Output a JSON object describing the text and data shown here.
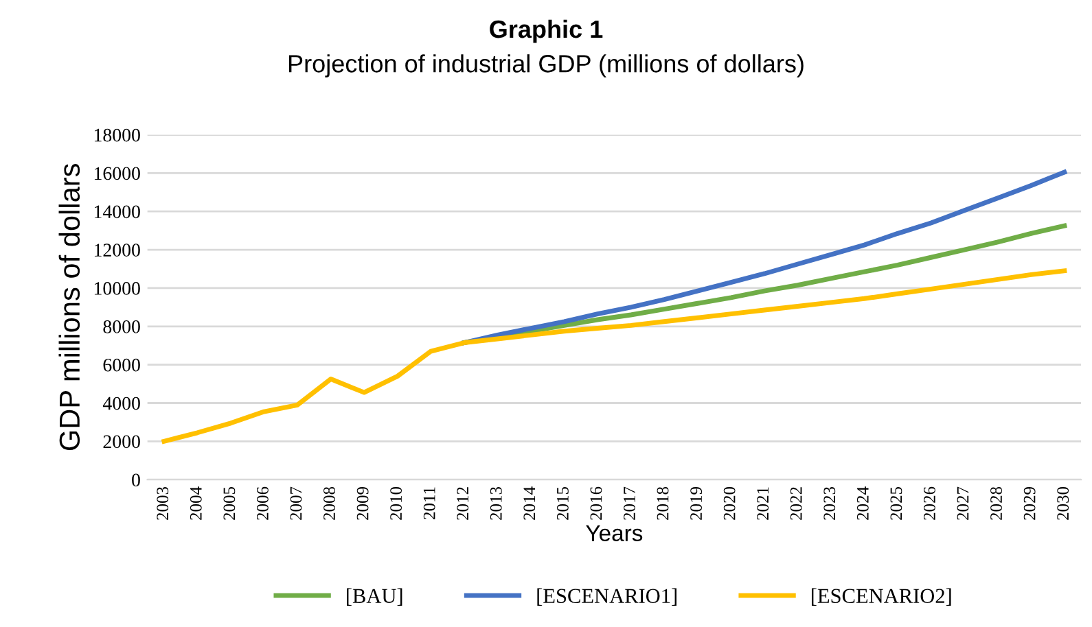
{
  "chart_data": {
    "type": "line",
    "title": "Graphic 1",
    "subtitle": "Projection of industrial GDP (millions of dollars)",
    "xlabel": "Years",
    "ylabel": "GDP millions of dollars",
    "categories": [
      "2003",
      "2004",
      "2005",
      "2006",
      "2007",
      "2008",
      "2009",
      "2010",
      "2011",
      "2012",
      "2013",
      "2014",
      "2015",
      "2016",
      "2017",
      "2018",
      "2019",
      "2020",
      "2021",
      "2022",
      "2023",
      "2024",
      "2025",
      "2026",
      "2027",
      "2028",
      "2029",
      "2030"
    ],
    "series": [
      {
        "name": "[BAU]",
        "color": "#70ad47",
        "values": [
          null,
          null,
          null,
          null,
          null,
          null,
          null,
          null,
          null,
          7150,
          7450,
          7750,
          8050,
          8350,
          8600,
          8900,
          9200,
          9500,
          9850,
          10150,
          10500,
          10850,
          11200,
          11600,
          12000,
          12400,
          12850,
          13250
        ]
      },
      {
        "name": "[ESCENARIO1]",
        "color": "#4472c4",
        "values": [
          null,
          null,
          null,
          null,
          null,
          null,
          null,
          null,
          null,
          7150,
          7550,
          7900,
          8250,
          8650,
          9000,
          9400,
          9850,
          10300,
          10750,
          11250,
          11750,
          12250,
          12850,
          13400,
          14050,
          14700,
          15350,
          16050
        ]
      },
      {
        "name": "[ESCENARIO2]",
        "color": "#ffc000",
        "values": [
          2000,
          2450,
          2950,
          3550,
          3900,
          5250,
          4550,
          5400,
          6700,
          7150,
          7350,
          7550,
          7750,
          7900,
          8050,
          8250,
          8450,
          8650,
          8850,
          9050,
          9250,
          9450,
          9700,
          9950,
          10200,
          10450,
          10700,
          10900
        ]
      }
    ],
    "ylim": [
      0,
      18000
    ],
    "yticks": [
      0,
      2000,
      4000,
      6000,
      8000,
      10000,
      12000,
      14000,
      16000,
      18000
    ],
    "grid": "y",
    "legend": "bottom",
    "marker": "none",
    "line_style": "solid"
  }
}
